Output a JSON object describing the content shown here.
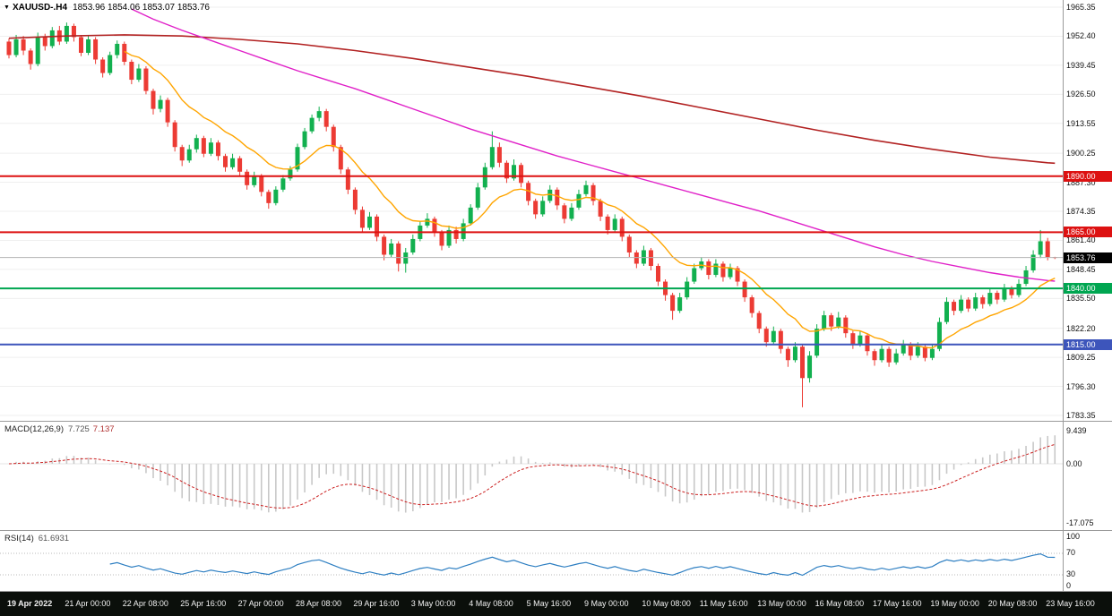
{
  "title": {
    "collapse_icon": "▼",
    "symbol_period": "XAUUSD-.H4",
    "ohlc": "1853.96 1854.06 1853.07 1853.76"
  },
  "chart_data": {
    "type": "candlestick",
    "symbol": "XAUUSD-.H4",
    "timeframe": "H4",
    "price_axis": {
      "top": 1965.35,
      "bottom": 1783.35,
      "ticks": [
        "1965.35",
        "1952.40",
        "1939.45",
        "1926.50",
        "1913.55",
        "1900.25",
        "1887.30",
        "1874.35",
        "1861.40",
        "1848.45",
        "1835.50",
        "1822.20",
        "1809.25",
        "1796.30",
        "1783.35"
      ]
    },
    "time_labels": [
      "19 Apr 2022",
      "21 Apr 00:00",
      "22 Apr 08:00",
      "25 Apr 16:00",
      "27 Apr 00:00",
      "28 Apr 08:00",
      "29 Apr 16:00",
      "3 May 00:00",
      "4 May 08:00",
      "5 May 16:00",
      "9 May 00:00",
      "10 May 08:00",
      "11 May 16:00",
      "13 May 00:00",
      "16 May 08:00",
      "17 May 16:00",
      "19 May 00:00",
      "20 May 08:00",
      "23 May 16:00"
    ],
    "label_step": 8,
    "candles": [
      [
        1950,
        1951.5,
        1942.5,
        1944
      ],
      [
        1944,
        1953,
        1943,
        1951
      ],
      [
        1951,
        1952.5,
        1944,
        1946
      ],
      [
        1946,
        1947,
        1937.5,
        1940
      ],
      [
        1940,
        1954,
        1939,
        1952
      ],
      [
        1952,
        1953.5,
        1946,
        1948
      ],
      [
        1948,
        1956.5,
        1947,
        1955
      ],
      [
        1955,
        1957,
        1948.5,
        1950
      ],
      [
        1950,
        1958.5,
        1949,
        1957
      ],
      [
        1957,
        1958,
        1950,
        1952
      ],
      [
        1952,
        1953,
        1943.5,
        1945
      ],
      [
        1945,
        1952.5,
        1944,
        1951
      ],
      [
        1951,
        1952,
        1940,
        1942
      ],
      [
        1942,
        1943,
        1934,
        1936
      ],
      [
        1936,
        1945.5,
        1935,
        1944
      ],
      [
        1944,
        1950.5,
        1942.5,
        1949
      ],
      [
        1949,
        1950,
        1939.5,
        1941
      ],
      [
        1941,
        1942,
        1931,
        1933
      ],
      [
        1933,
        1940,
        1932,
        1938
      ],
      [
        1938,
        1939,
        1926.5,
        1928
      ],
      [
        1928,
        1929,
        1917.5,
        1920
      ],
      [
        1920,
        1926,
        1918.5,
        1924
      ],
      [
        1924,
        1925,
        1912,
        1914
      ],
      [
        1914,
        1915,
        1901,
        1903
      ],
      [
        1903,
        1904,
        1894.5,
        1897
      ],
      [
        1897,
        1904,
        1896,
        1902
      ],
      [
        1902,
        1908.5,
        1900.5,
        1907
      ],
      [
        1907,
        1908,
        1898.5,
        1900
      ],
      [
        1900,
        1907,
        1899,
        1905
      ],
      [
        1905,
        1906,
        1897,
        1899
      ],
      [
        1899,
        1900,
        1892,
        1894
      ],
      [
        1894,
        1900,
        1893,
        1898
      ],
      [
        1898,
        1899,
        1890,
        1892
      ],
      [
        1892,
        1893,
        1884,
        1886
      ],
      [
        1886,
        1892,
        1885,
        1890
      ],
      [
        1890,
        1891,
        1881,
        1883
      ],
      [
        1883,
        1884,
        1875.5,
        1878
      ],
      [
        1878,
        1885.5,
        1877,
        1884
      ],
      [
        1884,
        1890.5,
        1883,
        1889
      ],
      [
        1889,
        1894.5,
        1888,
        1893
      ],
      [
        1893,
        1904.5,
        1892,
        1903
      ],
      [
        1903,
        1911.5,
        1902,
        1910
      ],
      [
        1910,
        1917.5,
        1909,
        1916
      ],
      [
        1916,
        1921,
        1914.5,
        1919
      ],
      [
        1919,
        1920,
        1910,
        1912
      ],
      [
        1912,
        1913,
        1901,
        1903
      ],
      [
        1903,
        1904,
        1891,
        1893
      ],
      [
        1893,
        1894,
        1882,
        1884
      ],
      [
        1884,
        1885,
        1873,
        1875
      ],
      [
        1875,
        1876.5,
        1865,
        1867
      ],
      [
        1867,
        1874,
        1866,
        1872
      ],
      [
        1872,
        1873,
        1861,
        1863
      ],
      [
        1863,
        1864,
        1852.5,
        1855
      ],
      [
        1855,
        1862,
        1854,
        1860
      ],
      [
        1860,
        1861,
        1847.5,
        1851
      ],
      [
        1851,
        1858,
        1847,
        1856
      ],
      [
        1856,
        1864,
        1855,
        1862
      ],
      [
        1862,
        1870,
        1861,
        1868
      ],
      [
        1868,
        1873.5,
        1867,
        1871
      ],
      [
        1871,
        1872,
        1863,
        1865
      ],
      [
        1865,
        1866,
        1857,
        1859
      ],
      [
        1859,
        1868,
        1858,
        1866
      ],
      [
        1866,
        1867.5,
        1860,
        1862
      ],
      [
        1862,
        1871,
        1861,
        1869
      ],
      [
        1869,
        1877.5,
        1868,
        1876
      ],
      [
        1876,
        1887,
        1875,
        1885
      ],
      [
        1885,
        1896,
        1884,
        1894
      ],
      [
        1894,
        1910,
        1893,
        1903
      ],
      [
        1903,
        1905,
        1894,
        1896
      ],
      [
        1896,
        1897,
        1887,
        1889
      ],
      [
        1889,
        1897.5,
        1888,
        1895
      ],
      [
        1895,
        1896,
        1885,
        1887
      ],
      [
        1887,
        1888,
        1877,
        1879
      ],
      [
        1879,
        1880,
        1871,
        1873
      ],
      [
        1873,
        1881,
        1872,
        1879
      ],
      [
        1879,
        1886,
        1878,
        1884
      ],
      [
        1884,
        1885,
        1875,
        1877
      ],
      [
        1877,
        1878,
        1869,
        1871
      ],
      [
        1871,
        1878,
        1870,
        1876
      ],
      [
        1876,
        1884,
        1875,
        1882
      ],
      [
        1882,
        1888,
        1881,
        1886
      ],
      [
        1886,
        1887,
        1877,
        1879
      ],
      [
        1879,
        1880,
        1870,
        1872
      ],
      [
        1872,
        1873,
        1864,
        1866
      ],
      [
        1866,
        1873,
        1865,
        1871
      ],
      [
        1871,
        1872,
        1861,
        1863
      ],
      [
        1863,
        1864,
        1854,
        1856
      ],
      [
        1856,
        1857,
        1849,
        1851
      ],
      [
        1851,
        1859,
        1850,
        1857
      ],
      [
        1857,
        1858,
        1848,
        1850
      ],
      [
        1850,
        1851,
        1841,
        1843
      ],
      [
        1843,
        1844,
        1834.5,
        1837
      ],
      [
        1837,
        1838,
        1826,
        1830
      ],
      [
        1830,
        1838,
        1829,
        1836
      ],
      [
        1836,
        1845,
        1835,
        1843
      ],
      [
        1843,
        1851,
        1842,
        1849
      ],
      [
        1849,
        1854,
        1848,
        1852
      ],
      [
        1852,
        1853,
        1844,
        1846
      ],
      [
        1846,
        1853,
        1845,
        1851
      ],
      [
        1851,
        1852,
        1843,
        1845
      ],
      [
        1845,
        1851,
        1844,
        1849
      ],
      [
        1849,
        1850,
        1841,
        1843
      ],
      [
        1843,
        1844,
        1834,
        1836
      ],
      [
        1836,
        1837,
        1827,
        1829
      ],
      [
        1829,
        1830,
        1820,
        1822
      ],
      [
        1822,
        1823,
        1814,
        1816
      ],
      [
        1816,
        1823,
        1815,
        1821
      ],
      [
        1821,
        1822,
        1811,
        1813
      ],
      [
        1813,
        1814,
        1805,
        1808
      ],
      [
        1808,
        1816,
        1807,
        1814
      ],
      [
        1814,
        1815,
        1787,
        1800
      ],
      [
        1800,
        1812,
        1798,
        1810
      ],
      [
        1810,
        1824,
        1809,
        1822
      ],
      [
        1822,
        1830,
        1821,
        1828
      ],
      [
        1828,
        1829,
        1821,
        1823
      ],
      [
        1823,
        1829.5,
        1822,
        1827
      ],
      [
        1827,
        1828,
        1818,
        1820
      ],
      [
        1820,
        1821,
        1813,
        1815
      ],
      [
        1815,
        1821,
        1814,
        1819
      ],
      [
        1819,
        1820,
        1810,
        1812
      ],
      [
        1812,
        1813,
        1805.5,
        1808
      ],
      [
        1808,
        1815,
        1807,
        1813
      ],
      [
        1813,
        1814,
        1805,
        1807
      ],
      [
        1807,
        1813,
        1806,
        1811
      ],
      [
        1811,
        1817,
        1810,
        1815
      ],
      [
        1815,
        1816,
        1808,
        1810
      ],
      [
        1810,
        1816,
        1809,
        1814
      ],
      [
        1814,
        1815,
        1807.5,
        1809
      ],
      [
        1809,
        1815,
        1808,
        1813
      ],
      [
        1813,
        1827,
        1812,
        1825
      ],
      [
        1825,
        1836,
        1824,
        1834
      ],
      [
        1834,
        1835,
        1828,
        1830
      ],
      [
        1830,
        1837,
        1829,
        1835
      ],
      [
        1835,
        1836,
        1829.5,
        1831
      ],
      [
        1831,
        1838,
        1830,
        1836
      ],
      [
        1836,
        1837,
        1831,
        1833
      ],
      [
        1833,
        1840,
        1832,
        1838
      ],
      [
        1838,
        1839,
        1833,
        1835
      ],
      [
        1835,
        1842,
        1834,
        1840
      ],
      [
        1840,
        1841,
        1835.5,
        1837
      ],
      [
        1837,
        1844,
        1836,
        1842
      ],
      [
        1842,
        1850,
        1841,
        1848
      ],
      [
        1848,
        1857,
        1847,
        1855
      ],
      [
        1855,
        1866,
        1853.5,
        1861
      ],
      [
        1861,
        1862.5,
        1852.5,
        1854
      ],
      [
        1853.96,
        1854.06,
        1853.07,
        1853.76
      ]
    ],
    "hlines": [
      {
        "price": 1890.0,
        "label": "1890.00",
        "color": "#dd1111"
      },
      {
        "price": 1865.0,
        "label": "1865.00",
        "color": "#dd1111"
      },
      {
        "price": 1840.0,
        "label": "1840.00",
        "color": "#00a651"
      },
      {
        "price": 1815.0,
        "label": "1815.00",
        "color": "#3d55bb"
      }
    ],
    "current_price": {
      "value": 1853.76,
      "label": "1853.76",
      "badge_color": "#000000",
      "line_color": "#b5b5b5"
    },
    "ma_overlays": {
      "fast": {
        "name": "ma-fast-orange",
        "type": "ema",
        "period": 13,
        "color": "#ffa500",
        "draw_from": 16
      },
      "medium": {
        "name": "ma-medium-magenta",
        "color": "#e020c8",
        "points": [
          [
            17,
            1964.5
          ],
          [
            20,
            1960
          ],
          [
            24,
            1955
          ],
          [
            28,
            1950.5
          ],
          [
            32,
            1946
          ],
          [
            36,
            1941.5
          ],
          [
            40,
            1937
          ],
          [
            44,
            1933
          ],
          [
            48,
            1929
          ],
          [
            52,
            1924.5
          ],
          [
            56,
            1920
          ],
          [
            60,
            1915.5
          ],
          [
            64,
            1911
          ],
          [
            68,
            1907
          ],
          [
            72,
            1903
          ],
          [
            76,
            1899
          ],
          [
            80,
            1895.5
          ],
          [
            84,
            1892
          ],
          [
            88,
            1888.5
          ],
          [
            92,
            1885
          ],
          [
            96,
            1881.5
          ],
          [
            100,
            1878
          ],
          [
            104,
            1874.5
          ],
          [
            108,
            1870.5
          ],
          [
            112,
            1866.5
          ],
          [
            116,
            1862.5
          ],
          [
            120,
            1858.5
          ],
          [
            124,
            1855
          ],
          [
            128,
            1852
          ],
          [
            132,
            1849.5
          ],
          [
            136,
            1847
          ],
          [
            140,
            1845
          ],
          [
            144,
            1843.5
          ],
          [
            145,
            1843.2
          ]
        ]
      },
      "slow": {
        "name": "ma-slow-darkred",
        "color": "#b22222",
        "points": [
          [
            0,
            1951.5
          ],
          [
            8,
            1952.5
          ],
          [
            16,
            1953
          ],
          [
            24,
            1952.5
          ],
          [
            32,
            1951
          ],
          [
            40,
            1949
          ],
          [
            48,
            1946
          ],
          [
            56,
            1942.5
          ],
          [
            64,
            1938.5
          ],
          [
            72,
            1934.5
          ],
          [
            80,
            1930
          ],
          [
            88,
            1925.5
          ],
          [
            96,
            1920.5
          ],
          [
            104,
            1915.5
          ],
          [
            112,
            1910.5
          ],
          [
            120,
            1906
          ],
          [
            128,
            1902
          ],
          [
            136,
            1898.5
          ],
          [
            144,
            1896
          ],
          [
            145,
            1895.8
          ]
        ]
      }
    },
    "macd": {
      "label": "MACD(12,26,9)",
      "value_main": "7.725",
      "value_signal": "7.137",
      "params": [
        12,
        26,
        9
      ],
      "axis": [
        "9.439",
        "0.00",
        "-17.075"
      ]
    },
    "rsi": {
      "label": "RSI(14)",
      "value": "61.6931",
      "period": 14,
      "axis": [
        "100",
        "70",
        "30",
        "0"
      ],
      "levels": [
        70,
        30
      ]
    },
    "colors": {
      "up": "#12b04f",
      "down": "#ec3b34",
      "macd_hist": "#c8c8c8",
      "macd_signal": "#cc2222",
      "rsi": "#2e7fc2",
      "grid": "#efefef",
      "time_bar_bg": "#0b0f0b",
      "time_bar_text": "#f2f2f2"
    }
  }
}
